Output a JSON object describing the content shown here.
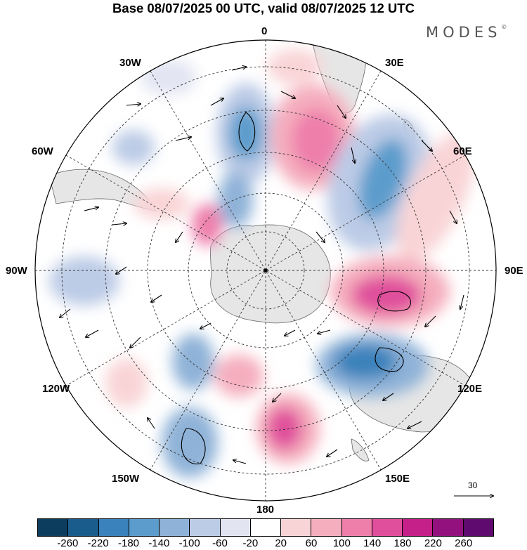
{
  "title": "Base 08/07/2025 00 UTC, valid 08/07/2025 12 UTC",
  "brand": {
    "name": "MODES",
    "mark": "©"
  },
  "longitude_labels": {
    "lon_0": "0",
    "lon_30e": "30E",
    "lon_60e": "60E",
    "lon_90e": "90E",
    "lon_120e": "120E",
    "lon_150e": "150E",
    "lon_180": "180",
    "lon_150w": "150W",
    "lon_120w": "120W",
    "lon_90w": "90W",
    "lon_60w": "60W",
    "lon_30w": "30W"
  },
  "reference_vector": {
    "value": "30"
  },
  "colorbar": {
    "colors": [
      "#0c3d5e",
      "#1a5d8c",
      "#3a82bb",
      "#5c9ccc",
      "#8fb2d8",
      "#bccbe6",
      "#e2e4f2",
      "#ffffff",
      "#f9d4d6",
      "#f5aebd",
      "#ee7fab",
      "#e04f9c",
      "#c51f8a",
      "#93117e",
      "#5e0a6e"
    ],
    "tick_labels": [
      "-260",
      "-220",
      "-180",
      "-140",
      "-100",
      "-60",
      "-20",
      "20",
      "60",
      "100",
      "140",
      "180",
      "220",
      "260"
    ]
  }
}
